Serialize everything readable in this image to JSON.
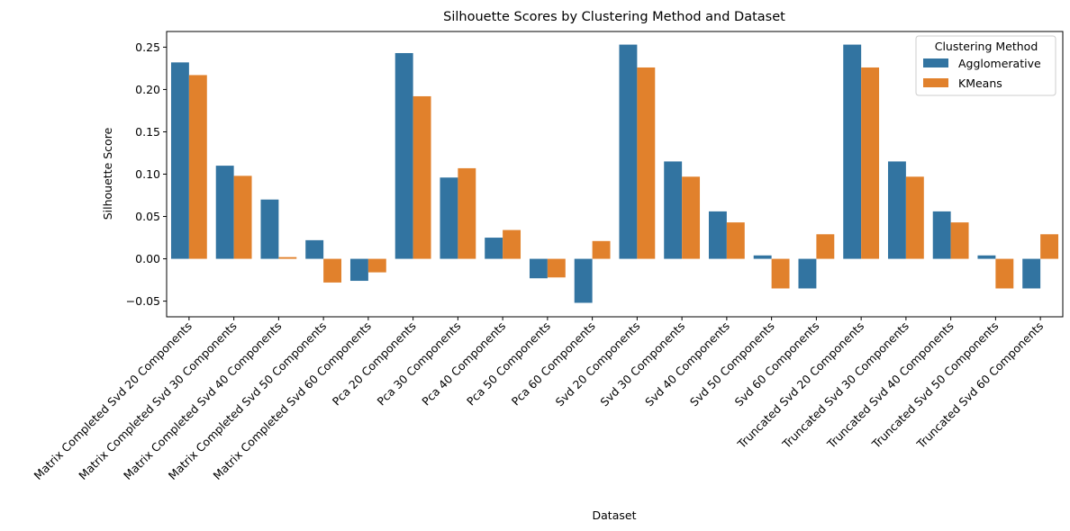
{
  "chart_data": {
    "type": "bar",
    "title": "Silhouette Scores by Clustering Method and Dataset",
    "xlabel": "Dataset",
    "ylabel": "Silhouette Score",
    "ylim": [
      -0.0685,
      0.2685
    ],
    "yticks": [
      -0.05,
      0.0,
      0.05,
      0.1,
      0.15,
      0.2,
      0.25
    ],
    "ytick_labels": [
      "−0.05",
      "0.00",
      "0.05",
      "0.10",
      "0.15",
      "0.20",
      "0.25"
    ],
    "grid": false,
    "legend": {
      "title": "Clustering Method",
      "position": "upper right"
    },
    "categories": [
      "Matrix Completed Svd 20 Components",
      "Matrix Completed Svd 30 Components",
      "Matrix Completed Svd 40 Components",
      "Matrix Completed Svd 50 Components",
      "Matrix Completed Svd 60 Components",
      "Pca 20 Components",
      "Pca 30 Components",
      "Pca 40 Components",
      "Pca 50 Components",
      "Pca 60 Components",
      "Svd 20 Components",
      "Svd 30 Components",
      "Svd 40 Components",
      "Svd 50 Components",
      "Svd 60 Components",
      "Truncated Svd 20 Components",
      "Truncated Svd 30 Components",
      "Truncated Svd 40 Components",
      "Truncated Svd 50 Components",
      "Truncated Svd 60 Components"
    ],
    "series": [
      {
        "name": "Agglomerative",
        "color": "#3274a1",
        "values": [
          0.232,
          0.11,
          0.07,
          0.022,
          -0.026,
          0.243,
          0.096,
          0.025,
          -0.023,
          -0.052,
          0.253,
          0.115,
          0.056,
          0.004,
          -0.035,
          0.253,
          0.115,
          0.056,
          0.004,
          -0.035
        ]
      },
      {
        "name": "KMeans",
        "color": "#e1812c",
        "values": [
          0.217,
          0.098,
          0.002,
          -0.028,
          -0.016,
          0.192,
          0.107,
          0.034,
          -0.022,
          0.021,
          0.226,
          0.097,
          0.043,
          -0.035,
          0.029,
          0.226,
          0.097,
          0.043,
          -0.035,
          0.029
        ]
      }
    ]
  }
}
